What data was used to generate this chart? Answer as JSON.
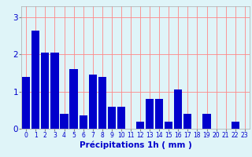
{
  "hours": [
    0,
    1,
    2,
    3,
    4,
    5,
    6,
    7,
    8,
    9,
    10,
    11,
    12,
    13,
    14,
    15,
    16,
    17,
    18,
    19,
    20,
    21,
    22,
    23
  ],
  "values": [
    1.4,
    2.65,
    2.05,
    2.05,
    0.4,
    1.6,
    0.35,
    1.45,
    1.4,
    0.6,
    0.6,
    0.0,
    0.2,
    0.8,
    0.8,
    0.2,
    1.05,
    0.4,
    0.0,
    0.4,
    0.0,
    0.0,
    0.2,
    0.0
  ],
  "bar_color": "#0000cc",
  "background_color": "#dff4f8",
  "grid_color": "#ff8888",
  "xlabel": "Précipitations 1h ( mm )",
  "ylim": [
    0,
    3.3
  ],
  "yticks": [
    0,
    1,
    2,
    3
  ],
  "xlabel_color": "#0000cc",
  "tick_color": "#0000cc",
  "xlabel_fontsize": 7.5,
  "xtick_fontsize": 5.5,
  "ytick_fontsize": 7.5
}
